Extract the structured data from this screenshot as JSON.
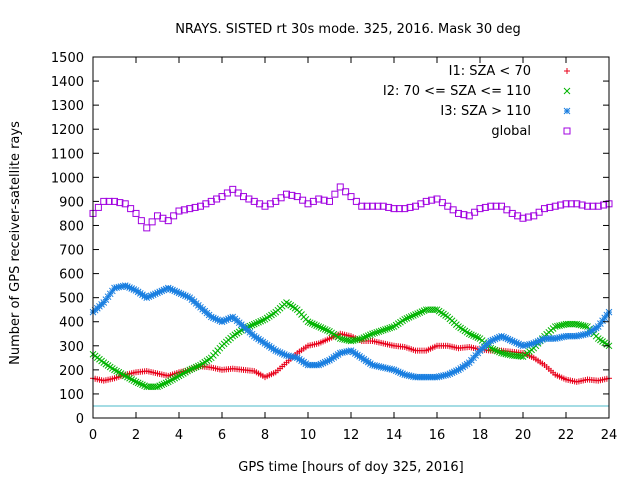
{
  "chart_data": {
    "type": "scatter",
    "title": "NRAYS. SISTED rt 30s mode. 325, 2016. Mask 30 deg",
    "xlabel": "GPS time [hours of doy 325, 2016]",
    "ylabel": "Number of GPS receiver-satellite rays",
    "xlim": [
      0,
      24
    ],
    "ylim": [
      0,
      1500
    ],
    "xticks": [
      0,
      2,
      4,
      6,
      8,
      10,
      12,
      14,
      16,
      18,
      20,
      22,
      24
    ],
    "yticks": [
      0,
      100,
      200,
      300,
      400,
      500,
      600,
      700,
      800,
      900,
      1000,
      1100,
      1200,
      1300,
      1400,
      1500
    ],
    "legend_position": "top-right",
    "threshold_line": {
      "y": 50,
      "color": "#4ab8c8"
    },
    "series": [
      {
        "name": "I1: SZA < 70",
        "color": "#e8001a",
        "marker": "+",
        "points": [
          [
            0,
            165
          ],
          [
            0.5,
            155
          ],
          [
            1,
            165
          ],
          [
            1.5,
            180
          ],
          [
            2,
            190
          ],
          [
            2.5,
            195
          ],
          [
            3,
            185
          ],
          [
            3.5,
            175
          ],
          [
            4,
            190
          ],
          [
            4.5,
            200
          ],
          [
            5,
            215
          ],
          [
            5.5,
            210
          ],
          [
            6,
            200
          ],
          [
            6.5,
            205
          ],
          [
            7,
            200
          ],
          [
            7.5,
            195
          ],
          [
            8,
            170
          ],
          [
            8.5,
            190
          ],
          [
            9,
            230
          ],
          [
            9.5,
            270
          ],
          [
            10,
            300
          ],
          [
            10.5,
            310
          ],
          [
            11,
            330
          ],
          [
            11.5,
            350
          ],
          [
            12,
            340
          ],
          [
            12.5,
            320
          ],
          [
            13,
            320
          ],
          [
            13.5,
            310
          ],
          [
            14,
            300
          ],
          [
            14.5,
            295
          ],
          [
            15,
            280
          ],
          [
            15.5,
            280
          ],
          [
            16,
            300
          ],
          [
            16.5,
            300
          ],
          [
            17,
            290
          ],
          [
            17.5,
            295
          ],
          [
            18,
            285
          ],
          [
            18.5,
            280
          ],
          [
            19,
            280
          ],
          [
            19.5,
            275
          ],
          [
            20,
            270
          ],
          [
            20.5,
            250
          ],
          [
            21,
            220
          ],
          [
            21.5,
            180
          ],
          [
            22,
            160
          ],
          [
            22.5,
            150
          ],
          [
            23,
            160
          ],
          [
            23.5,
            155
          ],
          [
            24,
            165
          ]
        ]
      },
      {
        "name": "I2: 70 <= SZA <= 110",
        "color": "#00b400",
        "marker": "x",
        "points": [
          [
            0,
            265
          ],
          [
            0.5,
            230
          ],
          [
            1,
            200
          ],
          [
            1.5,
            175
          ],
          [
            2,
            150
          ],
          [
            2.5,
            130
          ],
          [
            3,
            130
          ],
          [
            3.5,
            150
          ],
          [
            4,
            175
          ],
          [
            4.5,
            200
          ],
          [
            5,
            220
          ],
          [
            5.5,
            250
          ],
          [
            6,
            300
          ],
          [
            6.5,
            340
          ],
          [
            7,
            370
          ],
          [
            7.5,
            390
          ],
          [
            8,
            410
          ],
          [
            8.5,
            440
          ],
          [
            9,
            480
          ],
          [
            9.5,
            450
          ],
          [
            10,
            400
          ],
          [
            10.5,
            380
          ],
          [
            11,
            360
          ],
          [
            11.5,
            330
          ],
          [
            12,
            320
          ],
          [
            12.5,
            330
          ],
          [
            13,
            350
          ],
          [
            13.5,
            365
          ],
          [
            14,
            380
          ],
          [
            14.5,
            410
          ],
          [
            15,
            430
          ],
          [
            15.5,
            450
          ],
          [
            16,
            450
          ],
          [
            16.5,
            420
          ],
          [
            17,
            380
          ],
          [
            17.5,
            350
          ],
          [
            18,
            330
          ],
          [
            18.5,
            290
          ],
          [
            19,
            270
          ],
          [
            19.5,
            260
          ],
          [
            20,
            255
          ],
          [
            20.5,
            290
          ],
          [
            21,
            340
          ],
          [
            21.5,
            380
          ],
          [
            22,
            390
          ],
          [
            22.5,
            390
          ],
          [
            23,
            380
          ],
          [
            23.5,
            330
          ],
          [
            24,
            300
          ]
        ]
      },
      {
        "name": "I3: SZA > 110",
        "color": "#1a7fe0",
        "marker": "*",
        "points": [
          [
            0,
            440
          ],
          [
            0.5,
            480
          ],
          [
            1,
            540
          ],
          [
            1.5,
            550
          ],
          [
            2,
            530
          ],
          [
            2.5,
            500
          ],
          [
            3,
            520
          ],
          [
            3.5,
            540
          ],
          [
            4,
            520
          ],
          [
            4.5,
            500
          ],
          [
            5,
            460
          ],
          [
            5.5,
            420
          ],
          [
            6,
            400
          ],
          [
            6.5,
            420
          ],
          [
            7,
            380
          ],
          [
            7.5,
            340
          ],
          [
            8,
            310
          ],
          [
            8.5,
            280
          ],
          [
            9,
            260
          ],
          [
            9.5,
            250
          ],
          [
            10,
            220
          ],
          [
            10.5,
            220
          ],
          [
            11,
            240
          ],
          [
            11.5,
            270
          ],
          [
            12,
            280
          ],
          [
            12.5,
            250
          ],
          [
            13,
            220
          ],
          [
            13.5,
            210
          ],
          [
            14,
            200
          ],
          [
            14.5,
            180
          ],
          [
            15,
            170
          ],
          [
            15.5,
            170
          ],
          [
            16,
            170
          ],
          [
            16.5,
            180
          ],
          [
            17,
            200
          ],
          [
            17.5,
            230
          ],
          [
            18,
            280
          ],
          [
            18.5,
            320
          ],
          [
            19,
            340
          ],
          [
            19.5,
            320
          ],
          [
            20,
            300
          ],
          [
            20.5,
            310
          ],
          [
            21,
            330
          ],
          [
            21.5,
            330
          ],
          [
            22,
            340
          ],
          [
            22.5,
            340
          ],
          [
            23,
            350
          ],
          [
            23.5,
            380
          ],
          [
            24,
            440
          ]
        ]
      },
      {
        "name": "global",
        "color": "#a000e0",
        "marker": "square",
        "points": [
          [
            0,
            850
          ],
          [
            0.5,
            900
          ],
          [
            1,
            900
          ],
          [
            1.5,
            890
          ],
          [
            2,
            850
          ],
          [
            2.5,
            790
          ],
          [
            3,
            840
          ],
          [
            3.5,
            820
          ],
          [
            4,
            860
          ],
          [
            4.5,
            870
          ],
          [
            5,
            880
          ],
          [
            5.5,
            900
          ],
          [
            6,
            920
          ],
          [
            6.5,
            950
          ],
          [
            7,
            920
          ],
          [
            7.5,
            900
          ],
          [
            8,
            880
          ],
          [
            8.5,
            900
          ],
          [
            9,
            930
          ],
          [
            9.5,
            920
          ],
          [
            10,
            890
          ],
          [
            10.5,
            910
          ],
          [
            11,
            900
          ],
          [
            11.5,
            960
          ],
          [
            12,
            920
          ],
          [
            12.5,
            880
          ],
          [
            13,
            880
          ],
          [
            13.5,
            880
          ],
          [
            14,
            870
          ],
          [
            14.5,
            870
          ],
          [
            15,
            880
          ],
          [
            15.5,
            900
          ],
          [
            16,
            910
          ],
          [
            16.5,
            880
          ],
          [
            17,
            850
          ],
          [
            17.5,
            840
          ],
          [
            18,
            870
          ],
          [
            18.5,
            880
          ],
          [
            19,
            880
          ],
          [
            19.5,
            850
          ],
          [
            20,
            830
          ],
          [
            20.5,
            840
          ],
          [
            21,
            870
          ],
          [
            21.5,
            880
          ],
          [
            22,
            890
          ],
          [
            22.5,
            890
          ],
          [
            23,
            880
          ],
          [
            23.5,
            880
          ],
          [
            24,
            890
          ]
        ]
      }
    ]
  }
}
